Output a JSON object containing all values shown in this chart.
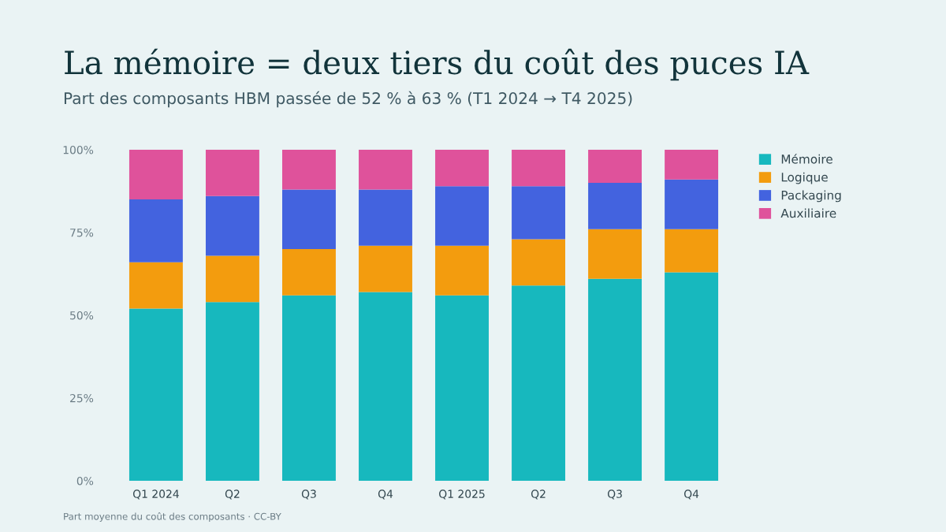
{
  "chart_data": {
    "type": "bar",
    "stacked": true,
    "title": "La mémoire = deux tiers du coût des puces IA",
    "subtitle": "Part des composants HBM passée de 52 % à 63 % (T1 2024 → T4 2025)",
    "categories": [
      "Q1 2024",
      "Q2",
      "Q3",
      "Q4",
      "Q1 2025",
      "Q2",
      "Q3",
      "Q4"
    ],
    "series": [
      {
        "name": "Mémoire",
        "color": "#17b8be",
        "values": [
          52,
          54,
          56,
          57,
          56,
          59,
          61,
          63
        ]
      },
      {
        "name": "Logique",
        "color": "#f39c0e",
        "values": [
          14,
          14,
          14,
          14,
          15,
          14,
          15,
          13
        ]
      },
      {
        "name": "Packaging",
        "color": "#4363df",
        "values": [
          19,
          18,
          18,
          17,
          18,
          16,
          14,
          15
        ]
      },
      {
        "name": "Auxiliaire",
        "color": "#df529b",
        "values": [
          15,
          14,
          12,
          12,
          11,
          11,
          10,
          9
        ]
      }
    ],
    "ylim": [
      0,
      100
    ],
    "yticks": [
      {
        "value": 0,
        "label": "0%"
      },
      {
        "value": 25,
        "label": "25%"
      },
      {
        "value": 50,
        "label": "50%"
      },
      {
        "value": 75,
        "label": "75%"
      },
      {
        "value": 100,
        "label": "100%"
      }
    ],
    "grid": false,
    "legend": "top right",
    "annotations": [
      "Part moyenne du coût des composants · CC-BY"
    ]
  }
}
